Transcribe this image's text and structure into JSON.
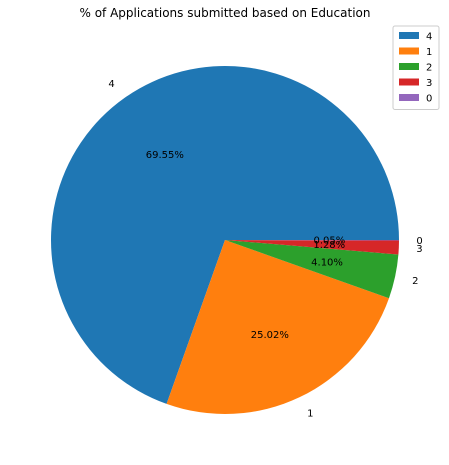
{
  "chart_data": {
    "type": "pie",
    "title": "% of Applications submitted based on Education",
    "slices": [
      {
        "label": "4",
        "value": 69.55,
        "pct_label": "69.55%",
        "color": "#1f77b4"
      },
      {
        "label": "1",
        "value": 25.02,
        "pct_label": "25.02%",
        "color": "#ff7f0e"
      },
      {
        "label": "2",
        "value": 4.1,
        "pct_label": "4.10%",
        "color": "#2ca02c"
      },
      {
        "label": "3",
        "value": 1.28,
        "pct_label": "1.28%",
        "color": "#d62728"
      },
      {
        "label": "0",
        "value": 0.05,
        "pct_label": "0.05%",
        "color": "#9467bd"
      }
    ],
    "legend": {
      "placement": "top-right",
      "entries": [
        "4",
        "1",
        "2",
        "3",
        "0"
      ]
    },
    "start_angle_deg": 0,
    "direction": "counterclockwise"
  }
}
